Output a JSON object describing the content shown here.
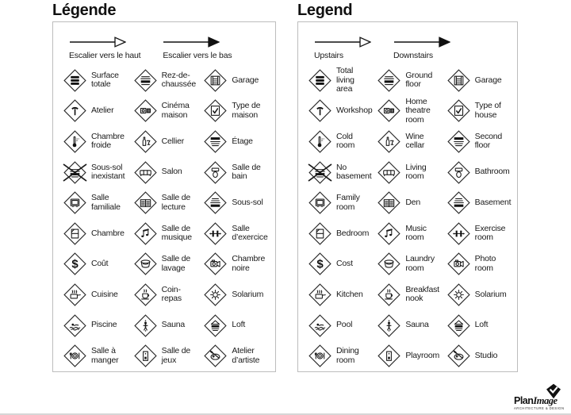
{
  "colors": {
    "text": "#1a1a1a",
    "panel_border": "#bdbdbd",
    "icon_stroke": "#1a1a1a",
    "icon_fill": "#111111"
  },
  "panels": [
    {
      "title": "Légende",
      "arrows": [
        {
          "style": "open",
          "icon": "upstairs-arrow-icon",
          "label": "Escalier vers le haut"
        },
        {
          "style": "solid",
          "icon": "downstairs-arrow-icon",
          "label": "Escalier vers le bas"
        }
      ],
      "items": [
        {
          "icon": "total-living-area-icon",
          "label": "Surface\ntotale"
        },
        {
          "icon": "ground-floor-icon",
          "label": "Rez-de-\nchaussée"
        },
        {
          "icon": "garage-icon",
          "label": "Garage"
        },
        {
          "icon": "workshop-icon",
          "label": "Atelier"
        },
        {
          "icon": "home-theatre-icon",
          "label": "Cinéma\nmaison"
        },
        {
          "icon": "type-of-house-icon",
          "label": "Type de\nmaison"
        },
        {
          "icon": "cold-room-icon",
          "label": "Chambre\nfroide"
        },
        {
          "icon": "wine-cellar-icon",
          "label": "Cellier"
        },
        {
          "icon": "second-floor-icon",
          "label": "Étage"
        },
        {
          "icon": "no-basement-icon",
          "label": "Sous-sol\ninexistant"
        },
        {
          "icon": "living-room-icon",
          "label": "Salon"
        },
        {
          "icon": "bathroom-icon",
          "label": "Salle de\nbain"
        },
        {
          "icon": "family-room-icon",
          "label": "Salle\nfamiliale"
        },
        {
          "icon": "den-icon",
          "label": "Salle de\nlecture"
        },
        {
          "icon": "basement-icon",
          "label": "Sous-sol"
        },
        {
          "icon": "bedroom-icon",
          "label": "Chambre"
        },
        {
          "icon": "music-room-icon",
          "label": "Salle de\nmusique"
        },
        {
          "icon": "exercise-room-icon",
          "label": "Salle\nd’exercice"
        },
        {
          "icon": "cost-icon",
          "label": "Coût"
        },
        {
          "icon": "laundry-room-icon",
          "label": "Salle de\nlavage"
        },
        {
          "icon": "photo-room-icon",
          "label": "Chambre\nnoire"
        },
        {
          "icon": "kitchen-icon",
          "label": "Cuisine"
        },
        {
          "icon": "breakfast-nook-icon",
          "label": "Coin-\nrepas"
        },
        {
          "icon": "solarium-icon",
          "label": "Solarium"
        },
        {
          "icon": "pool-icon",
          "label": "Piscine"
        },
        {
          "icon": "sauna-icon",
          "label": "Sauna"
        },
        {
          "icon": "loft-icon",
          "label": "Loft"
        },
        {
          "icon": "dining-room-icon",
          "label": "Salle à\nmanger"
        },
        {
          "icon": "playroom-icon",
          "label": "Salle de\njeux"
        },
        {
          "icon": "studio-icon",
          "label": "Atelier\nd’artiste"
        }
      ]
    },
    {
      "title": "Legend",
      "arrows": [
        {
          "style": "open",
          "icon": "upstairs-arrow-icon",
          "label": "Upstairs"
        },
        {
          "style": "solid",
          "icon": "downstairs-arrow-icon",
          "label": "Downstairs"
        }
      ],
      "items": [
        {
          "icon": "total-living-area-icon",
          "label": "Total\nliving\narea"
        },
        {
          "icon": "ground-floor-icon",
          "label": "Ground\nfloor"
        },
        {
          "icon": "garage-icon",
          "label": "Garage"
        },
        {
          "icon": "workshop-icon",
          "label": "Workshop"
        },
        {
          "icon": "home-theatre-icon",
          "label": "Home\ntheatre\nroom"
        },
        {
          "icon": "type-of-house-icon",
          "label": "Type of\nhouse"
        },
        {
          "icon": "cold-room-icon",
          "label": "Cold\nroom"
        },
        {
          "icon": "wine-cellar-icon",
          "label": "Wine\ncellar"
        },
        {
          "icon": "second-floor-icon",
          "label": "Second\nfloor"
        },
        {
          "icon": "no-basement-icon",
          "label": "No\nbasement"
        },
        {
          "icon": "living-room-icon",
          "label": "Living\nroom"
        },
        {
          "icon": "bathroom-icon",
          "label": "Bathroom"
        },
        {
          "icon": "family-room-icon",
          "label": "Family\nroom"
        },
        {
          "icon": "den-icon",
          "label": "Den"
        },
        {
          "icon": "basement-icon",
          "label": "Basement"
        },
        {
          "icon": "bedroom-icon",
          "label": "Bedroom"
        },
        {
          "icon": "music-room-icon",
          "label": "Music\nroom"
        },
        {
          "icon": "exercise-room-icon",
          "label": "Exercise\nroom"
        },
        {
          "icon": "cost-icon",
          "label": "Cost"
        },
        {
          "icon": "laundry-room-icon",
          "label": "Laundry\nroom"
        },
        {
          "icon": "photo-room-icon",
          "label": "Photo\nroom"
        },
        {
          "icon": "kitchen-icon",
          "label": "Kitchen"
        },
        {
          "icon": "breakfast-nook-icon",
          "label": "Breakfast\nnook"
        },
        {
          "icon": "solarium-icon",
          "label": "Solarium"
        },
        {
          "icon": "pool-icon",
          "label": "Pool"
        },
        {
          "icon": "sauna-icon",
          "label": "Sauna"
        },
        {
          "icon": "loft-icon",
          "label": "Loft"
        },
        {
          "icon": "dining-room-icon",
          "label": "Dining\nroom"
        },
        {
          "icon": "playroom-icon",
          "label": "Playroom"
        },
        {
          "icon": "studio-icon",
          "label": "Studio"
        }
      ]
    }
  ],
  "logo": {
    "name_bold": "Plan",
    "name_italic": "Image",
    "tagline": "ARCHITECTURE & DESIGN",
    "icon": "planimage-check-icon"
  }
}
